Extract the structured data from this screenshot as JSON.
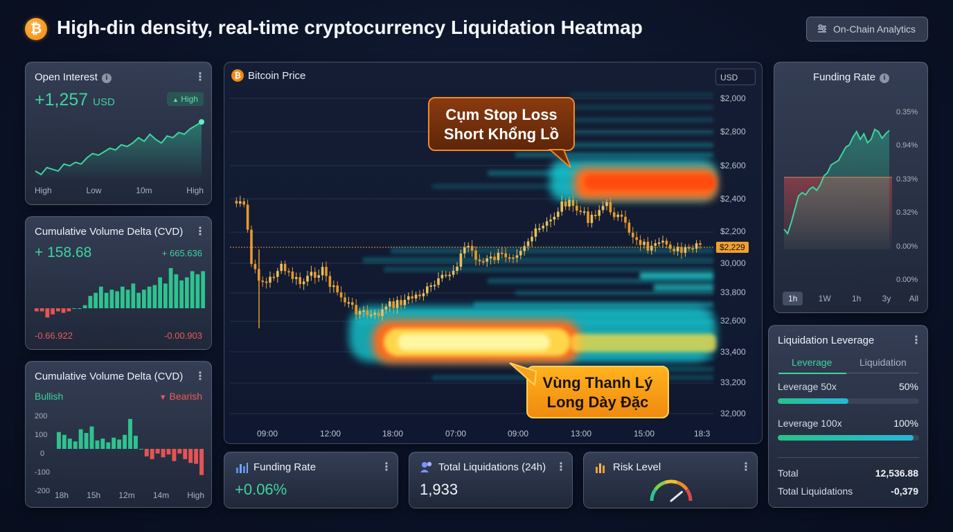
{
  "header": {
    "title": "High-din density, real-time cryptocurrency Liquidation Heatmap",
    "logo_glyph": "₿",
    "onchain_label": "On-Chain Analytics"
  },
  "open_interest": {
    "title": "Open Interest",
    "value": "+1,257",
    "unit": "USD",
    "badge": "High",
    "x_labels": [
      "High",
      "Low",
      "10m",
      "High"
    ],
    "series": [
      40,
      36,
      44,
      42,
      40,
      48,
      46,
      50,
      48,
      55,
      60,
      58,
      62,
      66,
      64,
      70,
      68,
      72,
      78,
      74,
      82,
      76,
      72,
      80,
      78,
      84,
      82,
      88,
      92,
      96
    ]
  },
  "cvd1": {
    "title": "Cumulative Volume Delta (CVD)",
    "value": "+ 158.68",
    "right_value": "+ 665.636",
    "bottom_left": "-0.66.922",
    "bottom_right": "-0.00.903",
    "bars": [
      -2,
      -2,
      -6,
      -4,
      -2,
      -3,
      -2,
      0,
      0,
      2,
      8,
      10,
      14,
      10,
      12,
      11,
      14,
      12,
      16,
      10,
      12,
      14,
      15,
      20,
      16,
      26,
      22,
      18,
      20,
      24,
      22,
      24
    ]
  },
  "cvd2": {
    "title": "Cumulative Volume Delta (CVD)",
    "bullish_label": "Bullish",
    "bearish_label": "Bearish",
    "y_labels": [
      "200",
      "100",
      "0",
      "-100",
      "-200"
    ],
    "x_labels": [
      "18h",
      "15h",
      "12m",
      "14m",
      "High"
    ],
    "bars": [
      90,
      75,
      55,
      40,
      105,
      85,
      120,
      45,
      55,
      35,
      60,
      50,
      75,
      160,
      70,
      0,
      -40,
      -55,
      -25,
      -45,
      -30,
      -65,
      -25,
      -55,
      -75,
      -80,
      -140
    ]
  },
  "main_chart": {
    "title": "Bitcoin Price",
    "currency": "USD",
    "price_labels": [
      "$2,000",
      "$2,800",
      "$2,600",
      "$2,400",
      "$2,200",
      "30,000",
      "33,800",
      "32,600",
      "33,400",
      "33,200",
      "32,000"
    ],
    "current_price": "$2,229",
    "time_labels": [
      "09:00",
      "12:00",
      "18:00",
      "07:00",
      "09:00",
      "13:00",
      "15:00",
      "18:3"
    ],
    "callout_top": [
      "Cụm Stop Loss",
      "Short Khổng Lồ"
    ],
    "callout_bottom": [
      "Vùng Thanh Lý",
      "Long Dày Đặc"
    ]
  },
  "funding_card": {
    "title": "Funding Rate",
    "value": "+0.06%"
  },
  "liq_card": {
    "title": "Total Liquidations (24h)",
    "value": "1,933"
  },
  "risk_card": {
    "title": "Risk Level",
    "level": 0.78
  },
  "funding_rate": {
    "title": "Funding Rate",
    "y_labels": [
      "0.35%",
      "0.94%",
      "0.33%",
      "0.32%",
      "0.00%",
      "0.00%"
    ],
    "tabs": [
      "1h",
      "1W",
      "1h",
      "3y",
      "All"
    ],
    "active_tab": 0,
    "series": [
      0.12,
      0.08,
      0.18,
      0.3,
      0.42,
      0.45,
      0.43,
      0.48,
      0.5,
      0.47,
      0.52,
      0.6,
      0.63,
      0.7,
      0.72,
      0.74,
      0.8,
      0.86,
      0.88,
      0.95,
      1.0,
      0.93,
      0.98,
      0.9,
      0.93,
      1.02,
      1.0,
      0.94,
      0.98,
      1.01
    ]
  },
  "leverage": {
    "title": "Liquidation Leverage",
    "tabs": [
      "Leverage",
      "Liquidation"
    ],
    "rows": [
      {
        "label": "Leverage 50x",
        "pct": "50%",
        "fill": 0.5
      },
      {
        "label": "Leverage 100x",
        "pct": "100%",
        "fill": 0.96
      }
    ],
    "total_label": "Total",
    "total_value": "12,536.88",
    "liq_label": "Total Liquidations",
    "liq_value": "-0,379"
  },
  "colors": {
    "green": "#3fd4a0",
    "red": "#ec5a5a",
    "orange": "#f0890f",
    "heat_cyan": "#18d8d8",
    "heat_orange": "#ff6a1a",
    "heat_yellow": "#fff27a"
  }
}
